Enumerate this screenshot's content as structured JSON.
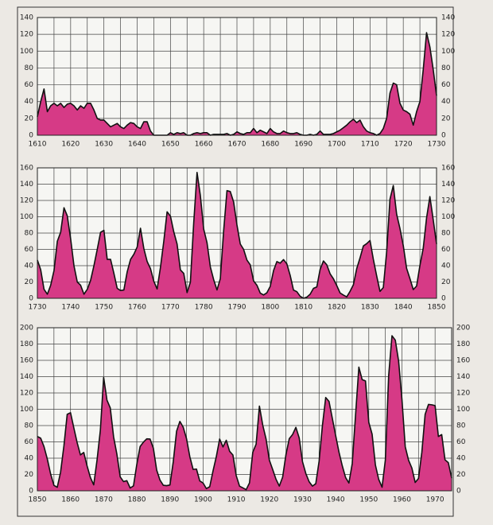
{
  "chart_data": [
    {
      "type": "area",
      "color": "#d63a86",
      "x": [
        1610,
        1611,
        1612,
        1613,
        1614,
        1615,
        1616,
        1617,
        1618,
        1619,
        1620,
        1621,
        1622,
        1623,
        1624,
        1625,
        1626,
        1627,
        1628,
        1629,
        1630,
        1631,
        1632,
        1633,
        1634,
        1635,
        1636,
        1637,
        1638,
        1639,
        1640,
        1641,
        1642,
        1643,
        1644,
        1645,
        1646,
        1647,
        1648,
        1649,
        1650,
        1651,
        1652,
        1653,
        1654,
        1655,
        1656,
        1657,
        1658,
        1659,
        1660,
        1661,
        1662,
        1663,
        1664,
        1665,
        1666,
        1667,
        1668,
        1669,
        1670,
        1671,
        1672,
        1673,
        1674,
        1675,
        1676,
        1677,
        1678,
        1679,
        1680,
        1681,
        1682,
        1683,
        1684,
        1685,
        1686,
        1687,
        1688,
        1689,
        1690,
        1691,
        1692,
        1693,
        1694,
        1695,
        1696,
        1697,
        1698,
        1699,
        1700,
        1701,
        1702,
        1703,
        1704,
        1705,
        1706,
        1707,
        1708,
        1709,
        1710,
        1711,
        1712,
        1713,
        1714,
        1715,
        1716,
        1717,
        1718,
        1719,
        1720,
        1721,
        1722,
        1723,
        1724,
        1725,
        1726,
        1727,
        1728,
        1729,
        1730
      ],
      "values": [
        22,
        40,
        55,
        28,
        35,
        38,
        35,
        38,
        33,
        37,
        38,
        35,
        30,
        35,
        32,
        38,
        38,
        30,
        20,
        18,
        18,
        14,
        10,
        12,
        14,
        10,
        8,
        12,
        15,
        14,
        10,
        8,
        16,
        16,
        5,
        0,
        0,
        0,
        0,
        0,
        3,
        1,
        3,
        2,
        3,
        0,
        0,
        2,
        3,
        2,
        3,
        3,
        0,
        1,
        1,
        1,
        1,
        2,
        0,
        1,
        4,
        2,
        1,
        3,
        3,
        8,
        3,
        6,
        4,
        2,
        8,
        4,
        2,
        2,
        5,
        3,
        2,
        2,
        3,
        1,
        0,
        0,
        1,
        0,
        1,
        5,
        1,
        1,
        1,
        2,
        4,
        6,
        9,
        12,
        16,
        19,
        15,
        18,
        10,
        5,
        3,
        2,
        0,
        2,
        8,
        20,
        50,
        62,
        60,
        38,
        30,
        28,
        25,
        12,
        28,
        40,
        78,
        122,
        105,
        78,
        47
      ],
      "xlim": [
        1610,
        1730
      ],
      "ylim": [
        0,
        140
      ],
      "xticks": [
        1610,
        1620,
        1630,
        1640,
        1650,
        1660,
        1670,
        1680,
        1690,
        1700,
        1710,
        1720,
        1730
      ],
      "yticks": [
        0,
        20,
        40,
        60,
        80,
        100,
        120,
        140
      ],
      "grid": true,
      "x_grid_step": 5
    },
    {
      "type": "area",
      "color": "#d63a86",
      "x": [
        1730,
        1731,
        1732,
        1733,
        1734,
        1735,
        1736,
        1737,
        1738,
        1739,
        1740,
        1741,
        1742,
        1743,
        1744,
        1745,
        1746,
        1747,
        1748,
        1749,
        1750,
        1751,
        1752,
        1753,
        1754,
        1755,
        1756,
        1757,
        1758,
        1759,
        1760,
        1761,
        1762,
        1763,
        1764,
        1765,
        1766,
        1767,
        1768,
        1769,
        1770,
        1771,
        1772,
        1773,
        1774,
        1775,
        1776,
        1777,
        1778,
        1779,
        1780,
        1781,
        1782,
        1783,
        1784,
        1785,
        1786,
        1787,
        1788,
        1789,
        1790,
        1791,
        1792,
        1793,
        1794,
        1795,
        1796,
        1797,
        1798,
        1799,
        1800,
        1801,
        1802,
        1803,
        1804,
        1805,
        1806,
        1807,
        1808,
        1809,
        1810,
        1811,
        1812,
        1813,
        1814,
        1815,
        1816,
        1817,
        1818,
        1819,
        1820,
        1821,
        1822,
        1823,
        1824,
        1825,
        1826,
        1827,
        1828,
        1829,
        1830,
        1831,
        1832,
        1833,
        1834,
        1835,
        1836,
        1837,
        1838,
        1839,
        1840,
        1841,
        1842,
        1843,
        1844,
        1845,
        1846,
        1847,
        1848,
        1849,
        1850
      ],
      "values": [
        47,
        35,
        11,
        5,
        16,
        34,
        70,
        81,
        111,
        101,
        73,
        40,
        20,
        16,
        5,
        11,
        22,
        40,
        60,
        80.9,
        83.4,
        47.7,
        47.8,
        30.7,
        12.2,
        9.6,
        10.2,
        32.4,
        47.6,
        54,
        62.9,
        85.9,
        61.2,
        45.1,
        36.4,
        20.9,
        11.4,
        37.8,
        69.8,
        106.1,
        100.8,
        81.6,
        66.5,
        34.8,
        30.6,
        7,
        19.8,
        92.5,
        154.4,
        125.9,
        84.8,
        68.1,
        38.5,
        22.8,
        10.2,
        24.1,
        82.9,
        132,
        130.9,
        118.1,
        89.9,
        66.6,
        60,
        46.9,
        41,
        21.3,
        16,
        6.4,
        4.1,
        6.8,
        14.5,
        34,
        45,
        43.1,
        47.5,
        42.2,
        28.1,
        10.1,
        8.1,
        2.5,
        0,
        1.4,
        5,
        12.2,
        13.9,
        35.4,
        45.8,
        41.1,
        30.1,
        23.9,
        15.6,
        6.6,
        4,
        1.8,
        8.5,
        16.6,
        36.3,
        49.6,
        64.2,
        67,
        70.9,
        47.8,
        27.5,
        8.5,
        13.2,
        56.9,
        121.5,
        138.3,
        103.2,
        85.7,
        64.6,
        36.7,
        24.2,
        10.7,
        15,
        40.1,
        61.5,
        98.5,
        124.7,
        96.3,
        66.6
      ],
      "xlim": [
        1730,
        1850
      ],
      "ylim": [
        0,
        160
      ],
      "xticks": [
        1730,
        1740,
        1750,
        1760,
        1770,
        1780,
        1790,
        1800,
        1810,
        1820,
        1830,
        1840,
        1850
      ],
      "yticks": [
        0,
        20,
        40,
        60,
        80,
        100,
        120,
        140,
        160
      ],
      "grid": true,
      "x_grid_step": 5
    },
    {
      "type": "area",
      "color": "#d63a86",
      "x": [
        1850,
        1851,
        1852,
        1853,
        1854,
        1855,
        1856,
        1857,
        1858,
        1859,
        1860,
        1861,
        1862,
        1863,
        1864,
        1865,
        1866,
        1867,
        1868,
        1869,
        1870,
        1871,
        1872,
        1873,
        1874,
        1875,
        1876,
        1877,
        1878,
        1879,
        1880,
        1881,
        1882,
        1883,
        1884,
        1885,
        1886,
        1887,
        1888,
        1889,
        1890,
        1891,
        1892,
        1893,
        1894,
        1895,
        1896,
        1897,
        1898,
        1899,
        1900,
        1901,
        1902,
        1903,
        1904,
        1905,
        1906,
        1907,
        1908,
        1909,
        1910,
        1911,
        1912,
        1913,
        1914,
        1915,
        1916,
        1917,
        1918,
        1919,
        1920,
        1921,
        1922,
        1923,
        1924,
        1925,
        1926,
        1927,
        1928,
        1929,
        1930,
        1931,
        1932,
        1933,
        1934,
        1935,
        1936,
        1937,
        1938,
        1939,
        1940,
        1941,
        1942,
        1943,
        1944,
        1945,
        1946,
        1947,
        1948,
        1949,
        1950,
        1951,
        1952,
        1953,
        1954,
        1955,
        1956,
        1957,
        1958,
        1959,
        1960,
        1961,
        1962,
        1963,
        1964,
        1965,
        1966,
        1967,
        1968,
        1969,
        1970,
        1971,
        1972,
        1973,
        1974,
        1975
      ],
      "values": [
        66.6,
        64.5,
        54.2,
        39,
        20.6,
        6.7,
        4.3,
        22.8,
        54.8,
        93.8,
        95.8,
        77.2,
        59.1,
        44,
        47,
        30.5,
        16.3,
        7.3,
        37.6,
        74,
        139,
        111.2,
        101.6,
        66.2,
        44.7,
        17,
        11.3,
        12.4,
        3.4,
        6,
        32.3,
        54.3,
        59.7,
        63.7,
        63.5,
        52.2,
        25.4,
        13.1,
        6.8,
        6.3,
        7.1,
        35.6,
        73,
        85.1,
        78,
        64,
        41.8,
        26.2,
        26.7,
        12.1,
        9.5,
        2.7,
        5,
        24.4,
        42,
        63.5,
        53.8,
        62,
        48.5,
        43.9,
        18.6,
        5.7,
        3.6,
        1.4,
        9.6,
        47.4,
        57.1,
        103.9,
        80.6,
        63.6,
        37.6,
        26.1,
        14.2,
        5.8,
        16.7,
        44.3,
        63.9,
        69,
        77.8,
        64.9,
        35.7,
        21.2,
        11.1,
        5.7,
        8.7,
        36.1,
        79.7,
        114.4,
        109.6,
        88.8,
        67.8,
        47.5,
        30.6,
        16.3,
        9.6,
        33.2,
        92.6,
        151.6,
        136.3,
        134.7,
        83.9,
        69.4,
        31.5,
        13.9,
        4.4,
        38,
        141.7,
        190.2,
        184.8,
        159,
        112.3,
        53.9,
        37.5,
        27.9,
        10.2,
        15.1,
        47,
        93.8,
        105.9,
        105.5,
        104.5,
        66.6,
        68.9,
        38,
        34.5,
        15.5
      ],
      "xlim": [
        1850,
        1975
      ],
      "ylim": [
        0,
        200
      ],
      "xticks": [
        1850,
        1860,
        1870,
        1880,
        1890,
        1900,
        1910,
        1920,
        1930,
        1940,
        1950,
        1960,
        1970
      ],
      "yticks": [
        0,
        20,
        40,
        60,
        80,
        100,
        120,
        140,
        160,
        180,
        200
      ],
      "grid": true,
      "x_grid_step": 5
    }
  ]
}
